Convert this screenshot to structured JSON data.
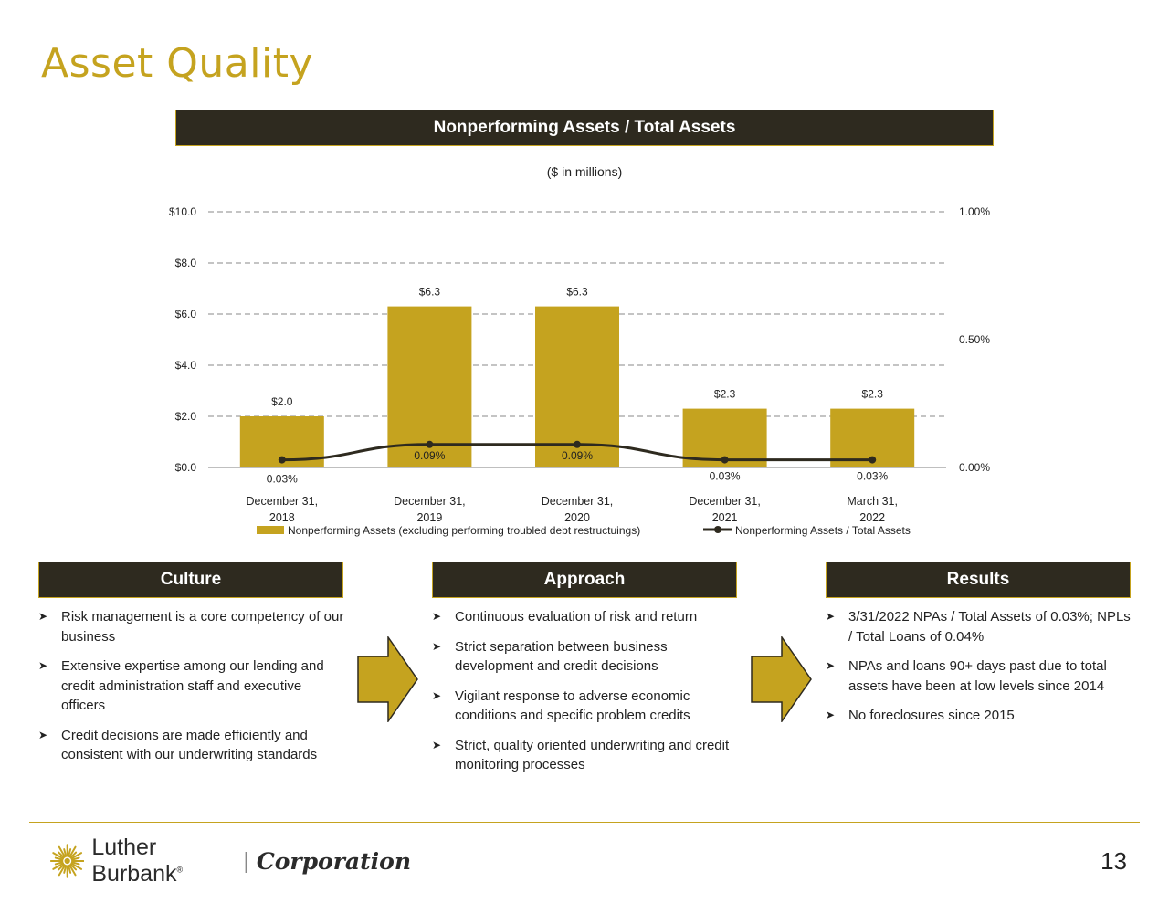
{
  "page": {
    "title": "Asset Quality",
    "page_number": "13"
  },
  "chart_header": "Nonperforming Assets / Total Assets",
  "chart_subtitle": "($ in millions)",
  "chart_data": {
    "type": "bar",
    "categories": [
      [
        "December 31,",
        "2018"
      ],
      [
        "December 31,",
        "2019"
      ],
      [
        "December 31,",
        "2020"
      ],
      [
        "December 31,",
        "2021"
      ],
      [
        "March 31,",
        "2022"
      ]
    ],
    "series": [
      {
        "name": "Nonperforming Assets (excluding performing troubled debt restructuings)",
        "type": "bar",
        "axis": "left",
        "values": [
          2.0,
          6.3,
          6.3,
          2.3,
          2.3
        ],
        "labels": [
          "$2.0",
          "$6.3",
          "$6.3",
          "$2.3",
          "$2.3"
        ],
        "color": "#C5A31F"
      },
      {
        "name": "Nonperforming Assets / Total Assets",
        "type": "line",
        "axis": "right",
        "values": [
          0.03,
          0.09,
          0.09,
          0.03,
          0.03
        ],
        "labels": [
          "0.03%",
          "0.09%",
          "0.09%",
          "0.03%",
          "0.03%"
        ],
        "color": "#2E2A1F"
      }
    ],
    "y_left": {
      "ylim": [
        0,
        10
      ],
      "ticks": [
        0,
        2,
        4,
        6,
        8,
        10
      ],
      "tick_labels": [
        "$0.0",
        "$2.0",
        "$4.0",
        "$6.0",
        "$8.0",
        "$10.0"
      ]
    },
    "y_right": {
      "ylim": [
        0,
        1
      ],
      "ticks": [
        0,
        0.5,
        1
      ],
      "tick_labels": [
        "0.00%",
        "0.50%",
        "1.00%"
      ]
    },
    "grid": true,
    "legend_position": "bottom"
  },
  "panels": [
    {
      "header": "Culture",
      "bullets": [
        "Risk management is a core competency of our business",
        "Extensive expertise among our lending and credit administration staff and executive officers",
        "Credit decisions are made efficiently and consistent with our underwriting standards"
      ]
    },
    {
      "header": "Approach",
      "bullets": [
        "Continuous evaluation of risk and return",
        "Strict separation between business development and credit decisions",
        "Vigilant response to adverse economic conditions and specific problem credits",
        "Strict, quality oriented underwriting and credit monitoring processes"
      ]
    },
    {
      "header": "Results",
      "bullets": [
        "3/31/2022 NPAs / Total Assets of 0.03%; NPLs / Total Loans of 0.04%",
        "NPAs and loans 90+ days past due to total assets have been at low levels since 2014",
        "No foreclosures since 2015"
      ]
    }
  ],
  "logo": {
    "name": "Luther Burbank",
    "registered": "®",
    "separator": "|",
    "corp": "Corporation"
  },
  "colors": {
    "gold": "#C5A31F",
    "dark": "#2E2A1F"
  }
}
